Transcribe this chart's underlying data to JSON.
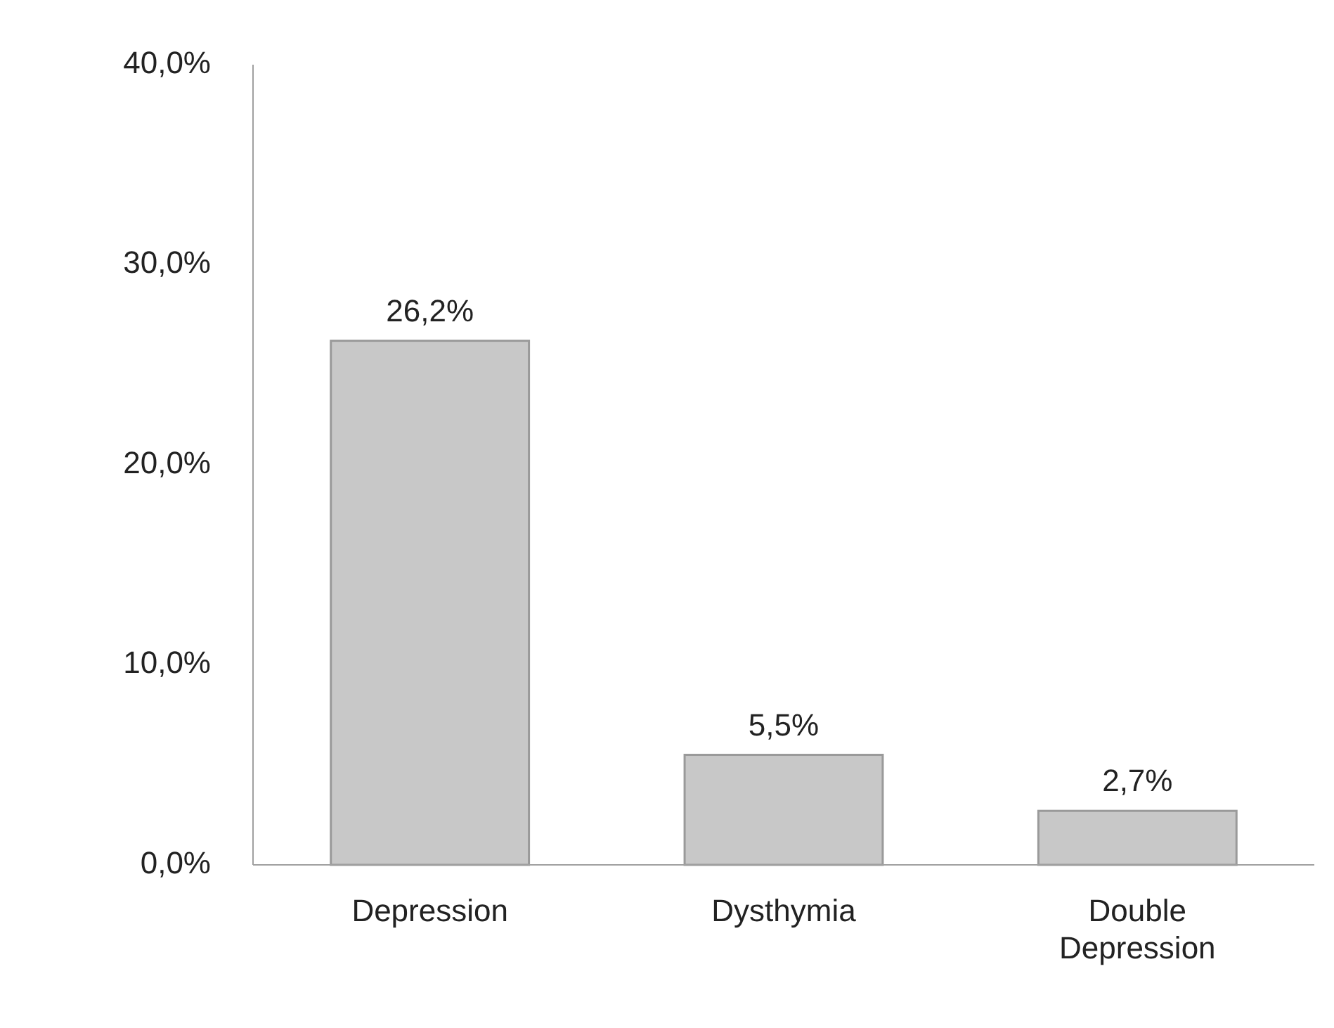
{
  "chart_data": {
    "type": "bar",
    "categories": [
      "Depression",
      "Dysthymia",
      "Double Depression"
    ],
    "values": [
      26.2,
      5.5,
      2.7
    ],
    "value_labels": [
      "26,2%",
      "5,5%",
      "2,7%"
    ],
    "color": "#c8c8c8",
    "ylim": [
      0,
      40
    ],
    "yticks": [
      {
        "value": 0,
        "label": "0,0%"
      },
      {
        "value": 10,
        "label": "10,0%"
      },
      {
        "value": 20,
        "label": "20,0%"
      },
      {
        "value": 30,
        "label": "30,0%"
      },
      {
        "value": 40,
        "label": "40,0%"
      }
    ],
    "grid": false
  }
}
